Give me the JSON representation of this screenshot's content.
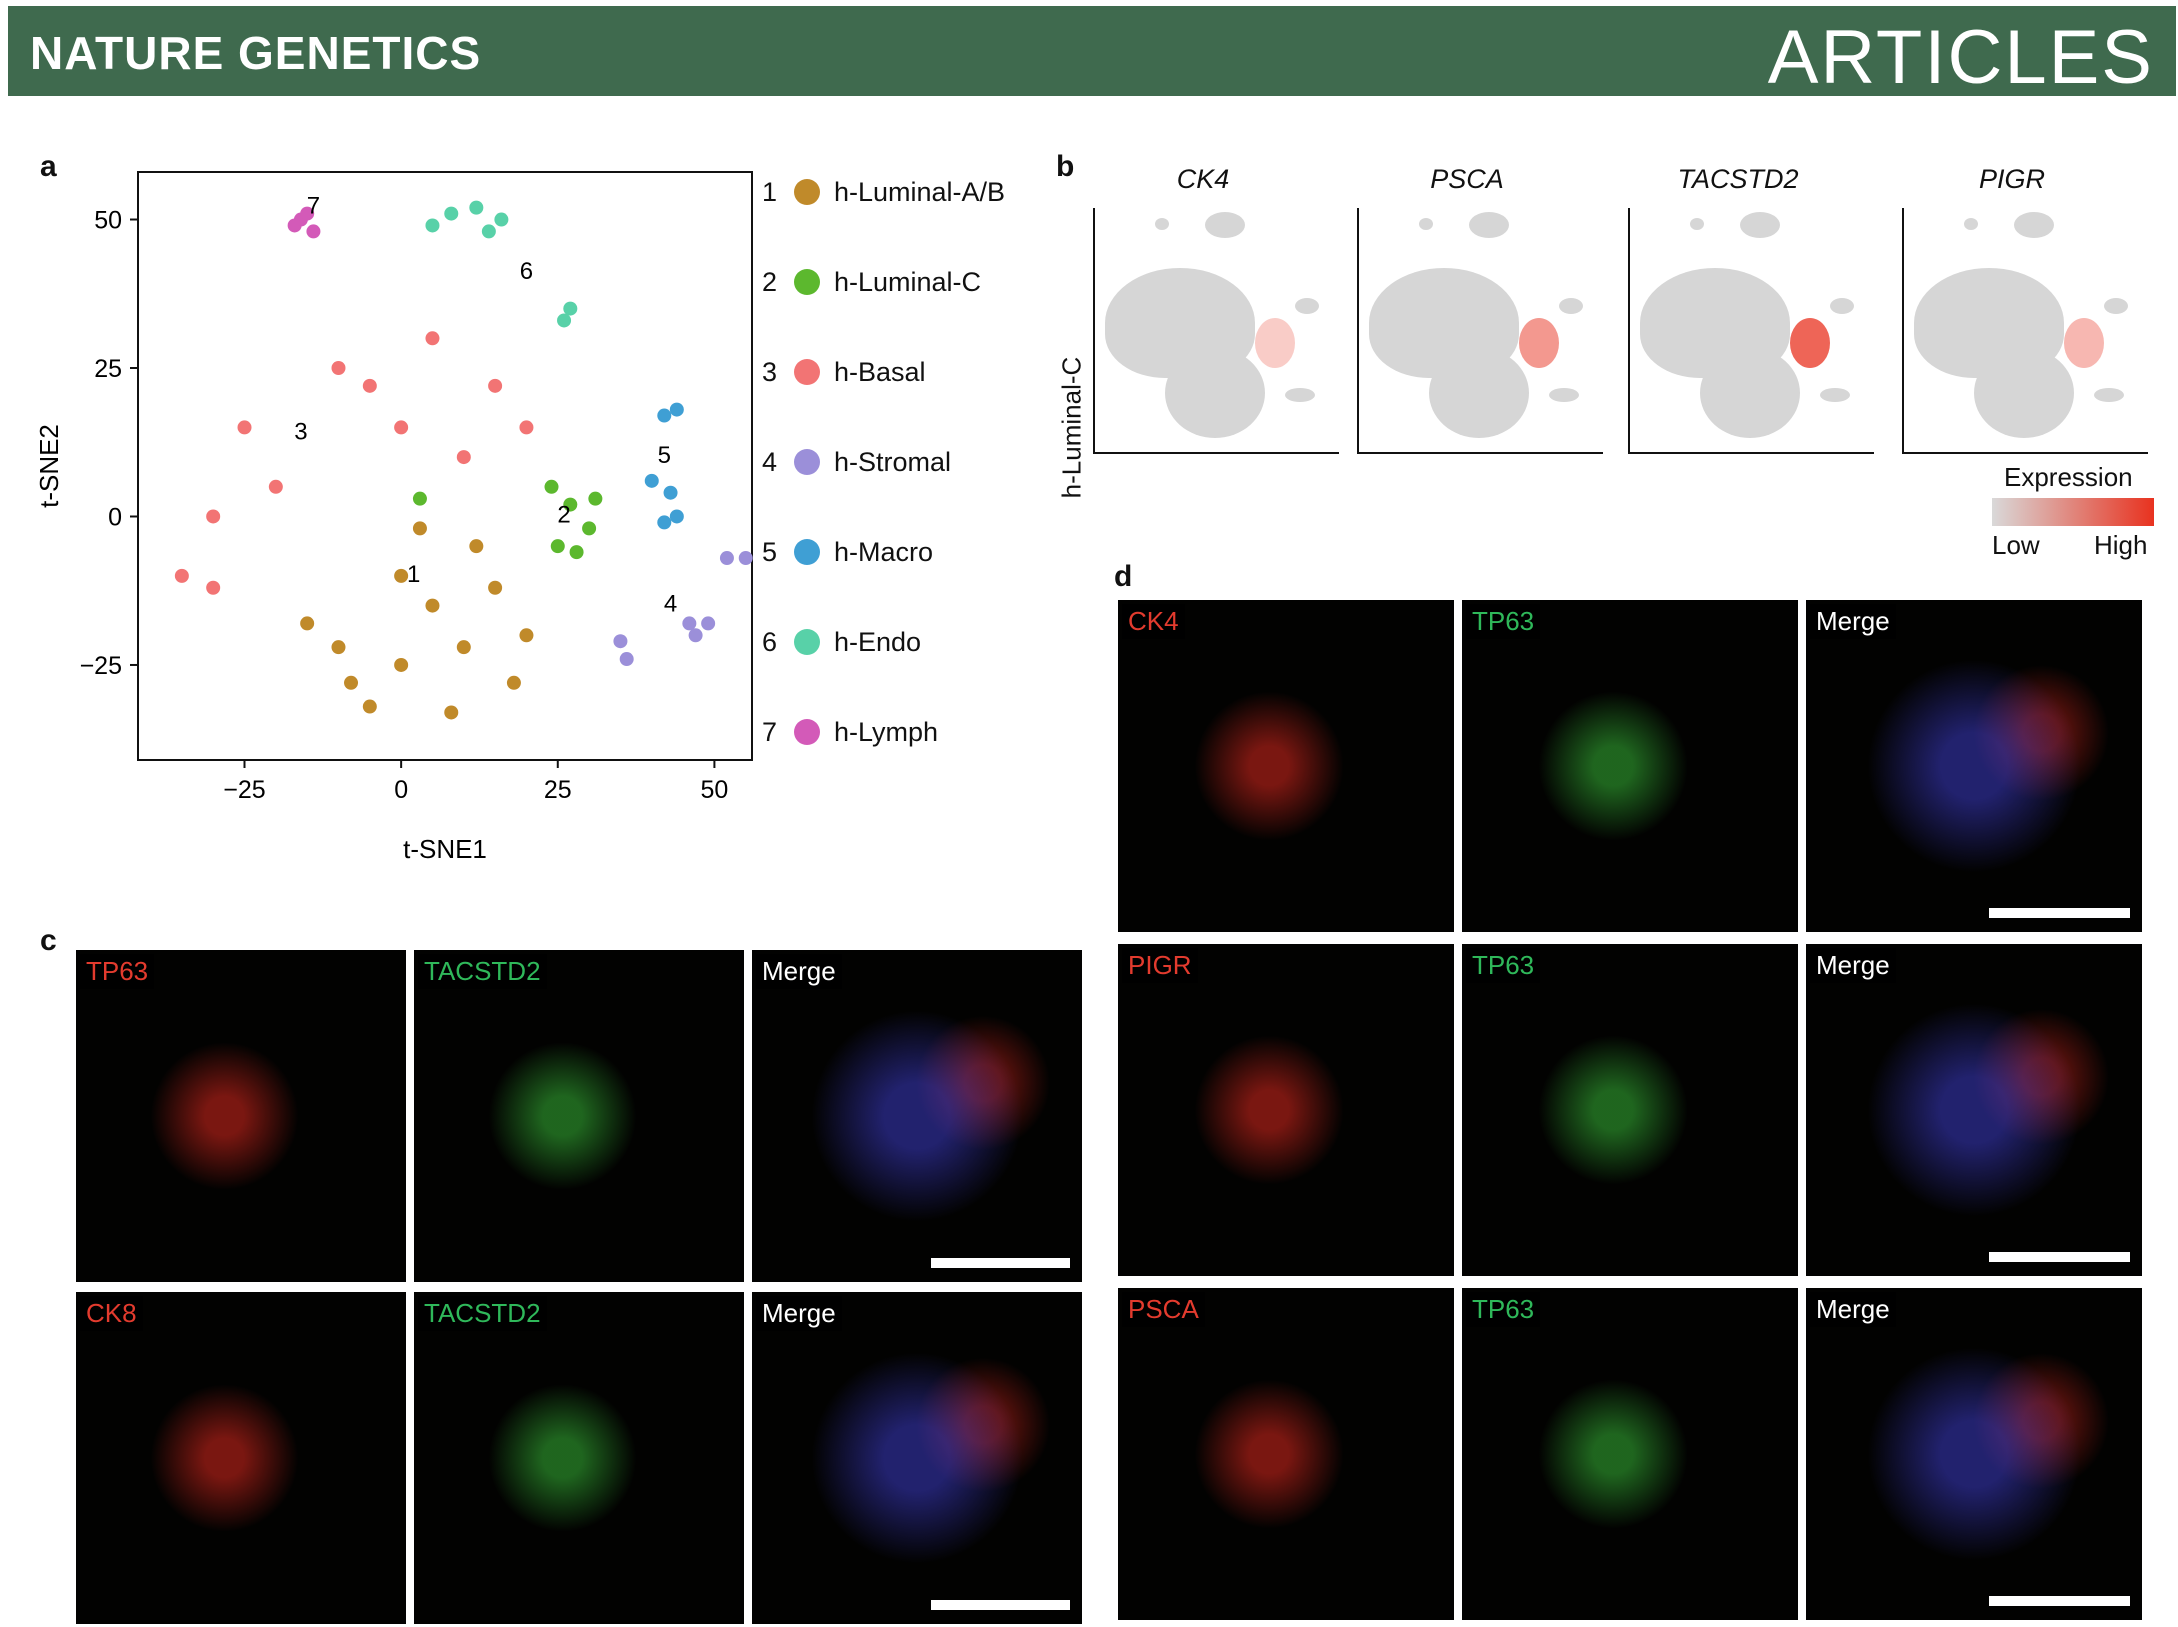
{
  "header": {
    "journal": "NATURE GENETICS",
    "section": "ARTICLES"
  },
  "panels": {
    "a": {
      "letter": "a"
    },
    "b": {
      "letter": "b",
      "row_label": "h-Luminal-C",
      "genes": [
        "CK4",
        "PSCA",
        "TACSTD2",
        "PIGR"
      ],
      "colorbar": {
        "title": "Expression",
        "low": "Low",
        "high": "High",
        "low_color": "#d9d9d9",
        "high_color": "#e8321f"
      }
    },
    "c": {
      "letter": "c",
      "rows": [
        {
          "labels": [
            "TP63",
            "TACSTD2",
            "Merge"
          ]
        },
        {
          "labels": [
            "CK8",
            "TACSTD2",
            "Merge"
          ]
        }
      ]
    },
    "d": {
      "letter": "d",
      "rows": [
        {
          "labels": [
            "CK4",
            "TP63",
            "Merge"
          ]
        },
        {
          "labels": [
            "PIGR",
            "TP63",
            "Merge"
          ]
        },
        {
          "labels": [
            "PSCA",
            "TP63",
            "Merge"
          ]
        }
      ]
    }
  },
  "chart_data": {
    "type": "scatter",
    "title": "",
    "xlabel": "t-SNE1",
    "ylabel": "t-SNE2",
    "xlim": [
      -42,
      56
    ],
    "ylim": [
      -41,
      58
    ],
    "xticks": [
      -25,
      0,
      25,
      50
    ],
    "yticks": [
      -25,
      0,
      25,
      50
    ],
    "grid": false,
    "legend_position": "right",
    "series": [
      {
        "name": "h-Luminal-A/B",
        "id": "1",
        "color": "#c08a2a",
        "points": [
          [
            0,
            -25
          ],
          [
            10,
            -22
          ],
          [
            -10,
            -22
          ],
          [
            5,
            -15
          ],
          [
            15,
            -12
          ],
          [
            -5,
            -32
          ],
          [
            8,
            -33
          ],
          [
            20,
            -20
          ],
          [
            -15,
            -18
          ],
          [
            0,
            -10
          ],
          [
            12,
            -5
          ],
          [
            3,
            -2
          ],
          [
            18,
            -28
          ],
          [
            -8,
            -28
          ]
        ]
      },
      {
        "name": "h-Luminal-C",
        "id": "2",
        "color": "#5cb82e",
        "points": [
          [
            27,
            2
          ],
          [
            30,
            -2
          ],
          [
            25,
            -5
          ],
          [
            31,
            3
          ],
          [
            28,
            -6
          ],
          [
            24,
            5
          ],
          [
            3,
            3
          ]
        ]
      },
      {
        "name": "h-Basal",
        "id": "3",
        "color": "#f27474",
        "points": [
          [
            -30,
            0
          ],
          [
            -25,
            15
          ],
          [
            -10,
            25
          ],
          [
            5,
            30
          ],
          [
            15,
            22
          ],
          [
            -35,
            -10
          ],
          [
            -20,
            5
          ],
          [
            0,
            15
          ],
          [
            10,
            10
          ],
          [
            -30,
            -12
          ],
          [
            20,
            15
          ],
          [
            -5,
            22
          ]
        ]
      },
      {
        "name": "h-Stromal",
        "id": "4",
        "color": "#9b8fd9",
        "points": [
          [
            46,
            -18
          ],
          [
            49,
            -18
          ],
          [
            47,
            -20
          ],
          [
            35,
            -21
          ],
          [
            36,
            -24
          ],
          [
            52,
            -7
          ],
          [
            55,
            -7
          ]
        ]
      },
      {
        "name": "h-Macro",
        "id": "5",
        "color": "#3f9fd4",
        "points": [
          [
            42,
            17
          ],
          [
            44,
            18
          ],
          [
            40,
            6
          ],
          [
            43,
            4
          ],
          [
            44,
            0
          ],
          [
            42,
            -1
          ]
        ]
      },
      {
        "name": "h-Endo",
        "id": "6",
        "color": "#58d1a8",
        "points": [
          [
            8,
            51
          ],
          [
            12,
            52
          ],
          [
            16,
            50
          ],
          [
            5,
            49
          ],
          [
            14,
            48
          ],
          [
            27,
            35
          ],
          [
            26,
            33
          ]
        ]
      },
      {
        "name": "h-Lymph",
        "id": "7",
        "color": "#d35ab8",
        "points": [
          [
            -16,
            50
          ],
          [
            -17,
            49
          ],
          [
            -15,
            51
          ],
          [
            -14,
            48
          ]
        ]
      }
    ],
    "cluster_labels": [
      {
        "text": "1",
        "x": 2,
        "y": -11
      },
      {
        "text": "2",
        "x": 26,
        "y": -1
      },
      {
        "text": "3",
        "x": -16,
        "y": 13
      },
      {
        "text": "4",
        "x": 43,
        "y": -16
      },
      {
        "text": "5",
        "x": 42,
        "y": 9
      },
      {
        "text": "6",
        "x": 20,
        "y": 40
      },
      {
        "text": "7",
        "x": -14,
        "y": 51
      }
    ]
  }
}
